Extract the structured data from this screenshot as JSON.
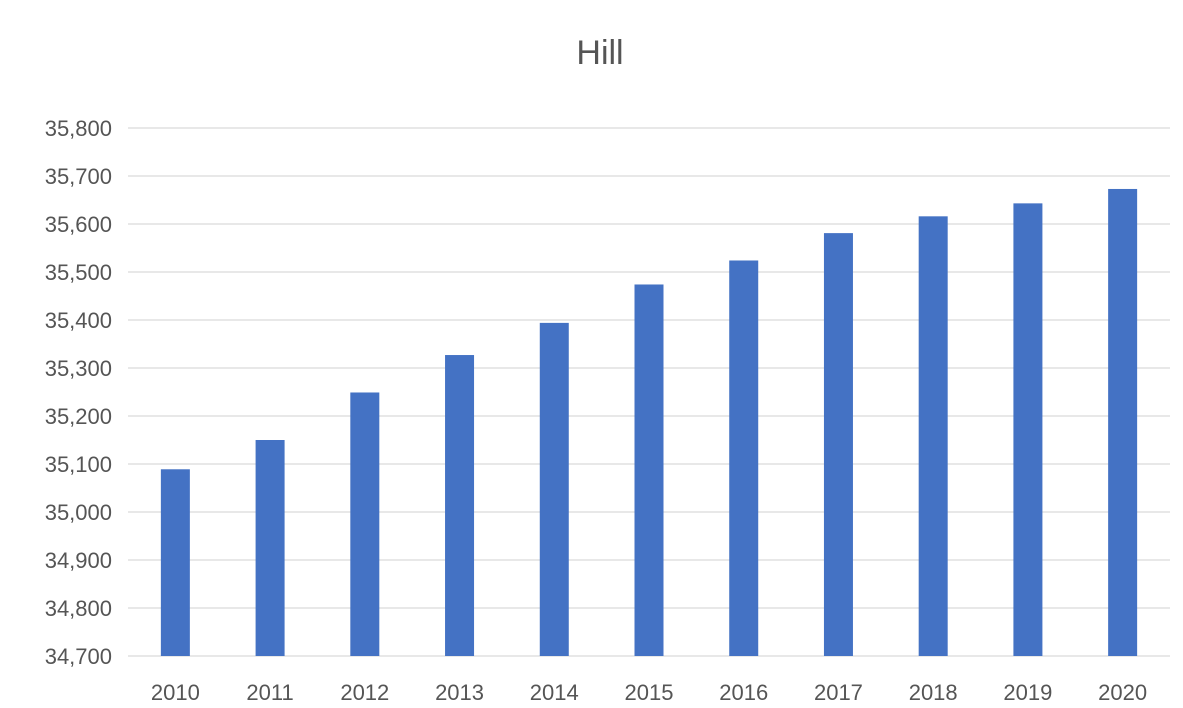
{
  "chart_data": {
    "type": "bar",
    "title": "Hill",
    "xlabel": "",
    "ylabel": "",
    "categories": [
      "2010",
      "2011",
      "2012",
      "2013",
      "2014",
      "2015",
      "2016",
      "2017",
      "2018",
      "2019",
      "2020"
    ],
    "values": [
      35089,
      35150,
      35249,
      35327,
      35394,
      35474,
      35524,
      35581,
      35616,
      35643,
      35673
    ],
    "ylim": [
      34700,
      35800
    ],
    "yticks": [
      "34,700",
      "34,800",
      "34,900",
      "35,000",
      "35,100",
      "35,200",
      "35,300",
      "35,400",
      "35,500",
      "35,600",
      "35,700",
      "35,800"
    ],
    "grid": true,
    "legend": "none",
    "bar_color": "#4472C4"
  }
}
